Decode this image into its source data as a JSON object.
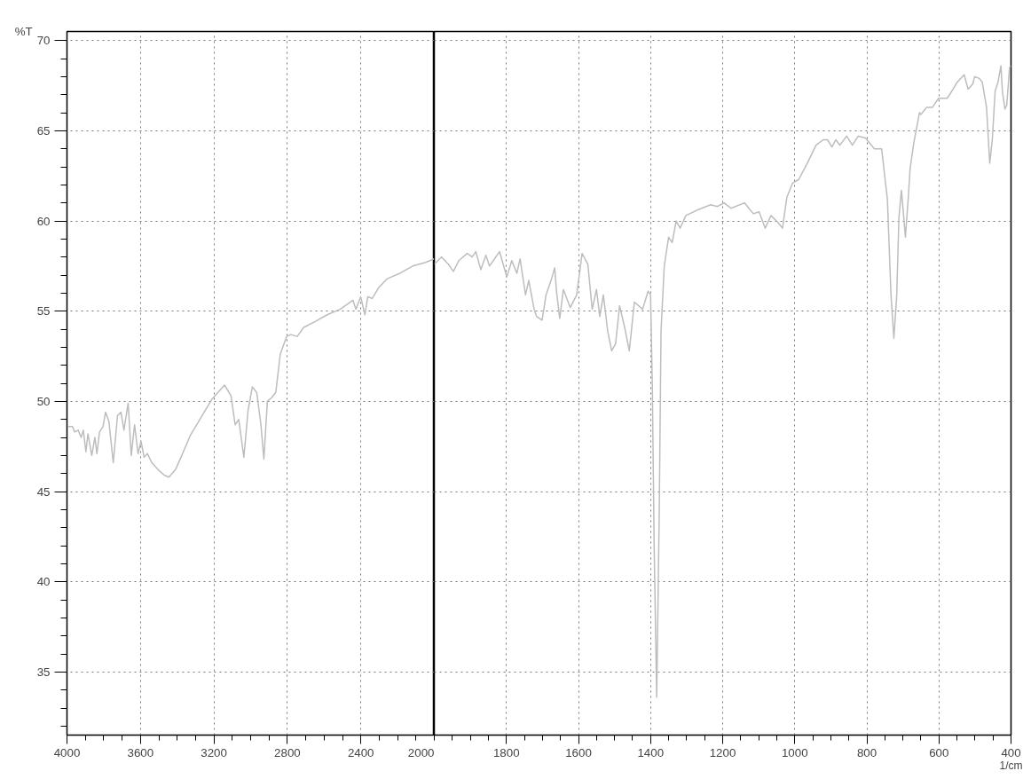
{
  "chart_data": [
    {
      "type": "line",
      "ylabel": "%T",
      "xlim": [
        4000,
        2000
      ],
      "ylim": [
        31.5,
        70.5
      ],
      "xticks": [
        4000,
        3600,
        3200,
        2800,
        2400,
        2000
      ],
      "yticks": [
        35,
        40,
        45,
        50,
        55,
        60,
        65,
        70
      ],
      "grid": true,
      "tick_labels": "xy",
      "series": [
        {
          "color": "#bdbdbd",
          "x": [
            4000,
            3970,
            3958,
            3939,
            3923,
            3911,
            3897,
            3886,
            3865,
            3848,
            3837,
            3823,
            3804,
            3790,
            3772,
            3748,
            3725,
            3706,
            3690,
            3667,
            3650,
            3632,
            3613,
            3597,
            3580,
            3562,
            3538,
            3503,
            3469,
            3445,
            3410,
            3375,
            3329,
            3282,
            3212,
            3142,
            3107,
            3084,
            3065,
            3037,
            3014,
            2991,
            2967,
            2944,
            2928,
            2909,
            2886,
            2863,
            2839,
            2804,
            2781,
            2746,
            2711,
            2653,
            2583,
            2513,
            2443,
            2427,
            2401,
            2378,
            2362,
            2338,
            2303,
            2256,
            2187,
            2117,
            2047,
            2000
          ],
          "values": [
            48.6,
            48.6,
            48.3,
            48.4,
            48.0,
            48.4,
            47.2,
            48.2,
            47.0,
            48.0,
            47.1,
            48.3,
            48.6,
            49.4,
            48.9,
            46.6,
            49.2,
            49.4,
            48.4,
            49.9,
            47.0,
            48.7,
            47.1,
            47.8,
            46.9,
            47.1,
            46.6,
            46.2,
            45.9,
            45.8,
            46.2,
            47.0,
            48.1,
            48.9,
            50.1,
            50.9,
            50.3,
            48.7,
            49.0,
            46.9,
            49.5,
            50.8,
            50.5,
            48.7,
            46.8,
            50.0,
            50.2,
            50.5,
            52.6,
            53.6,
            53.7,
            53.6,
            54.1,
            54.4,
            54.8,
            55.1,
            55.6,
            55.1,
            55.8,
            54.8,
            55.8,
            55.7,
            56.3,
            56.8,
            57.1,
            57.5,
            57.7,
            57.9
          ]
        }
      ]
    },
    {
      "type": "line",
      "xlabel": "1/cm",
      "xlim": [
        2000,
        400
      ],
      "ylim": [
        31.5,
        70.5
      ],
      "xticks": [
        1800,
        1600,
        1400,
        1200,
        1000,
        800,
        600,
        400
      ],
      "yticks": [
        35,
        40,
        45,
        50,
        55,
        60,
        65,
        70
      ],
      "grid": true,
      "tick_labels": "x",
      "series": [
        {
          "color": "#bdbdbd",
          "x": [
            2000,
            1980,
            1961,
            1947,
            1932,
            1909,
            1895,
            1885,
            1871,
            1857,
            1847,
            1833,
            1819,
            1799,
            1785,
            1771,
            1762,
            1747,
            1738,
            1723,
            1716,
            1701,
            1690,
            1676,
            1666,
            1661,
            1652,
            1642,
            1623,
            1605,
            1590,
            1574,
            1562,
            1550,
            1541,
            1531,
            1519,
            1508,
            1497,
            1486,
            1472,
            1459,
            1445,
            1433,
            1422,
            1407,
            1400,
            1395,
            1390,
            1383,
            1376,
            1371,
            1362,
            1350,
            1340,
            1329,
            1318,
            1302,
            1271,
            1233,
            1215,
            1196,
            1177,
            1139,
            1115,
            1099,
            1082,
            1066,
            1046,
            1034,
            1022,
            1006,
            989,
            965,
            941,
            921,
            909,
            897,
            886,
            875,
            856,
            840,
            824,
            804,
            779,
            759,
            743,
            733,
            725,
            717,
            711,
            704,
            693,
            685,
            680,
            670,
            654,
            650,
            634,
            618,
            601,
            577,
            561,
            549,
            530,
            519,
            506,
            501,
            488,
            480,
            468,
            459,
            452,
            444,
            436,
            428,
            424,
            417,
            412,
            404,
            400
          ],
          "values": [
            57.6,
            58.0,
            57.6,
            57.2,
            57.8,
            58.2,
            58.0,
            58.3,
            57.3,
            58.1,
            57.5,
            57.9,
            58.3,
            56.9,
            57.8,
            57.1,
            57.9,
            55.9,
            56.7,
            55.1,
            54.7,
            54.5,
            55.9,
            56.7,
            57.4,
            56.1,
            54.6,
            56.2,
            55.2,
            55.9,
            58.2,
            57.6,
            55.1,
            56.2,
            54.7,
            55.9,
            53.9,
            52.8,
            53.2,
            55.3,
            54.1,
            52.8,
            55.5,
            55.3,
            55.1,
            56.1,
            55.9,
            50.6,
            41.8,
            33.6,
            43.8,
            53.9,
            57.5,
            59.1,
            58.8,
            60.0,
            59.6,
            60.3,
            60.6,
            60.9,
            60.8,
            61.0,
            60.7,
            61.0,
            60.4,
            60.5,
            59.6,
            60.3,
            59.9,
            59.6,
            61.3,
            62.1,
            62.3,
            63.2,
            64.2,
            64.5,
            64.5,
            64.1,
            64.5,
            64.2,
            64.7,
            64.2,
            64.7,
            64.6,
            64.0,
            64.0,
            61.2,
            55.9,
            53.5,
            55.9,
            60.2,
            61.7,
            59.1,
            61.3,
            62.9,
            64.3,
            66.0,
            65.9,
            66.3,
            66.3,
            66.8,
            66.8,
            67.3,
            67.7,
            68.1,
            67.3,
            67.6,
            68.0,
            67.9,
            67.7,
            66.3,
            63.2,
            64.5,
            67.2,
            67.7,
            68.6,
            67.2,
            66.2,
            66.4,
            68.5,
            68.6
          ]
        }
      ]
    }
  ]
}
